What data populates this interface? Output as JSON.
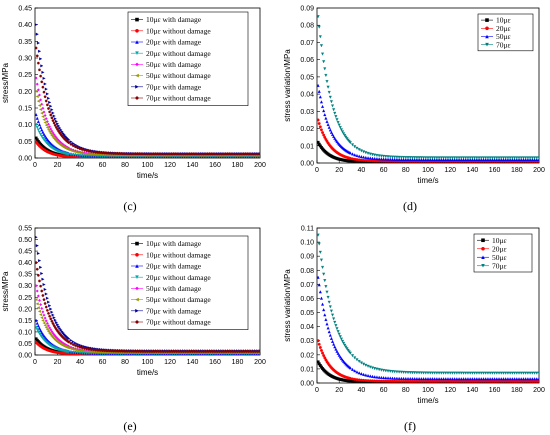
{
  "captions": [
    "(c)",
    "(d)",
    "(e)",
    "(f)"
  ],
  "chart_data": [
    {
      "type": "scatter",
      "panel": "(c)",
      "xlabel": "time/s",
      "ylabel": "stress/MPa",
      "xlim": [
        0,
        200
      ],
      "ylim": [
        0,
        0.45
      ],
      "xticks": [
        "0",
        "20",
        "40",
        "60",
        "80",
        "100",
        "120",
        "140",
        "160",
        "180",
        "200"
      ],
      "yticks": [
        "0.00",
        "0.05",
        "0.10",
        "0.15",
        "0.20",
        "0.25",
        "0.30",
        "0.35",
        "0.40",
        "0.45"
      ],
      "legend": "top-right",
      "series": [
        {
          "name": "10με with damage",
          "color": "#000000",
          "marker": "square",
          "peak": 0.06,
          "tail": 0.003,
          "tau": 10
        },
        {
          "name": "10με without damage",
          "color": "#ff0000",
          "marker": "circle",
          "peak": 0.048,
          "tail": 0.002,
          "tau": 10
        },
        {
          "name": "20με with damage",
          "color": "#0000ff",
          "marker": "triangle",
          "peak": 0.13,
          "tail": 0.005,
          "tau": 11
        },
        {
          "name": "20με without damage",
          "color": "#00aaaa",
          "marker": "triangle-down",
          "peak": 0.1,
          "tail": 0.004,
          "tau": 11
        },
        {
          "name": "50με with damage",
          "color": "#ff00ff",
          "marker": "diamond",
          "peak": 0.24,
          "tail": 0.009,
          "tau": 12
        },
        {
          "name": "50με without damage",
          "color": "#999900",
          "marker": "triangle-left",
          "peak": 0.2,
          "tail": 0.008,
          "tau": 12
        },
        {
          "name": "70με with damage",
          "color": "#000099",
          "marker": "triangle-right",
          "peak": 0.4,
          "tail": 0.013,
          "tau": 13
        },
        {
          "name": "70με without damage",
          "color": "#880000",
          "marker": "hexagon",
          "peak": 0.33,
          "tail": 0.012,
          "tau": 13
        }
      ]
    },
    {
      "type": "scatter",
      "panel": "(d)",
      "xlabel": "time/s",
      "ylabel": "stress variation/MPa",
      "xlim": [
        0,
        200
      ],
      "ylim": [
        0,
        0.09
      ],
      "xticks": [
        "0",
        "20",
        "40",
        "60",
        "80",
        "100",
        "120",
        "140",
        "160",
        "180",
        "200"
      ],
      "yticks": [
        "0.00",
        "0.01",
        "0.02",
        "0.03",
        "0.04",
        "0.05",
        "0.06",
        "0.07",
        "0.08",
        "0.09"
      ],
      "legend": "top-right",
      "series": [
        {
          "name": "10με",
          "color": "#000000",
          "marker": "square",
          "peak": 0.012,
          "tail": 0.0005,
          "tau": 10
        },
        {
          "name": "20με",
          "color": "#ff0000",
          "marker": "circle",
          "peak": 0.025,
          "tail": 0.001,
          "tau": 11
        },
        {
          "name": "50με",
          "color": "#0000ff",
          "marker": "triangle",
          "peak": 0.045,
          "tail": 0.002,
          "tau": 12
        },
        {
          "name": "70με",
          "color": "#008080",
          "marker": "triangle-down",
          "peak": 0.085,
          "tail": 0.003,
          "tau": 13
        }
      ]
    },
    {
      "type": "scatter",
      "panel": "(e)",
      "xlabel": "time/s",
      "ylabel": "stress/MPa",
      "xlim": [
        0,
        200
      ],
      "ylim": [
        0,
        0.55
      ],
      "xticks": [
        "0",
        "20",
        "40",
        "60",
        "80",
        "100",
        "120",
        "140",
        "160",
        "180",
        "200"
      ],
      "yticks": [
        "0.00",
        "0.05",
        "0.10",
        "0.15",
        "0.20",
        "0.25",
        "0.30",
        "0.35",
        "0.40",
        "0.45",
        "0.50",
        "0.55"
      ],
      "legend": "top-right",
      "series": [
        {
          "name": "10με with damage",
          "color": "#000000",
          "marker": "square",
          "peak": 0.07,
          "tail": 0.004,
          "tau": 10
        },
        {
          "name": "10με without damage",
          "color": "#ff0000",
          "marker": "circle",
          "peak": 0.055,
          "tail": 0.003,
          "tau": 10
        },
        {
          "name": "20με with damage",
          "color": "#0000ff",
          "marker": "triangle",
          "peak": 0.15,
          "tail": 0.006,
          "tau": 11
        },
        {
          "name": "20με without damage",
          "color": "#00aaaa",
          "marker": "triangle-down",
          "peak": 0.12,
          "tail": 0.005,
          "tau": 11
        },
        {
          "name": "50με with damage",
          "color": "#ff00ff",
          "marker": "diamond",
          "peak": 0.3,
          "tail": 0.012,
          "tau": 12
        },
        {
          "name": "50με without damage",
          "color": "#999900",
          "marker": "triangle-left",
          "peak": 0.24,
          "tail": 0.01,
          "tau": 12
        },
        {
          "name": "70με with damage",
          "color": "#000099",
          "marker": "triangle-right",
          "peak": 0.51,
          "tail": 0.018,
          "tau": 13
        },
        {
          "name": "70με without damage",
          "color": "#880000",
          "marker": "hexagon",
          "peak": 0.4,
          "tail": 0.015,
          "tau": 13
        }
      ]
    },
    {
      "type": "scatter",
      "panel": "(f)",
      "xlabel": "time/s",
      "ylabel": "stress variation/MPa",
      "xlim": [
        0,
        200
      ],
      "ylim": [
        0,
        0.11
      ],
      "xticks": [
        "0",
        "20",
        "40",
        "60",
        "80",
        "100",
        "120",
        "140",
        "160",
        "180",
        "200"
      ],
      "yticks": [
        "0.00",
        "0.01",
        "0.02",
        "0.03",
        "0.04",
        "0.05",
        "0.06",
        "0.07",
        "0.08",
        "0.09",
        "0.10",
        "0.11"
      ],
      "legend": "top-right",
      "series": [
        {
          "name": "10με",
          "color": "#000000",
          "marker": "square",
          "peak": 0.015,
          "tail": 0.0006,
          "tau": 10
        },
        {
          "name": "20με",
          "color": "#ff0000",
          "marker": "circle",
          "peak": 0.03,
          "tail": 0.0012,
          "tau": 11
        },
        {
          "name": "50με",
          "color": "#0000ff",
          "marker": "triangle",
          "peak": 0.075,
          "tail": 0.003,
          "tau": 13
        },
        {
          "name": "70με",
          "color": "#008080",
          "marker": "triangle-down",
          "peak": 0.105,
          "tail": 0.007,
          "tau": 15
        }
      ]
    }
  ]
}
